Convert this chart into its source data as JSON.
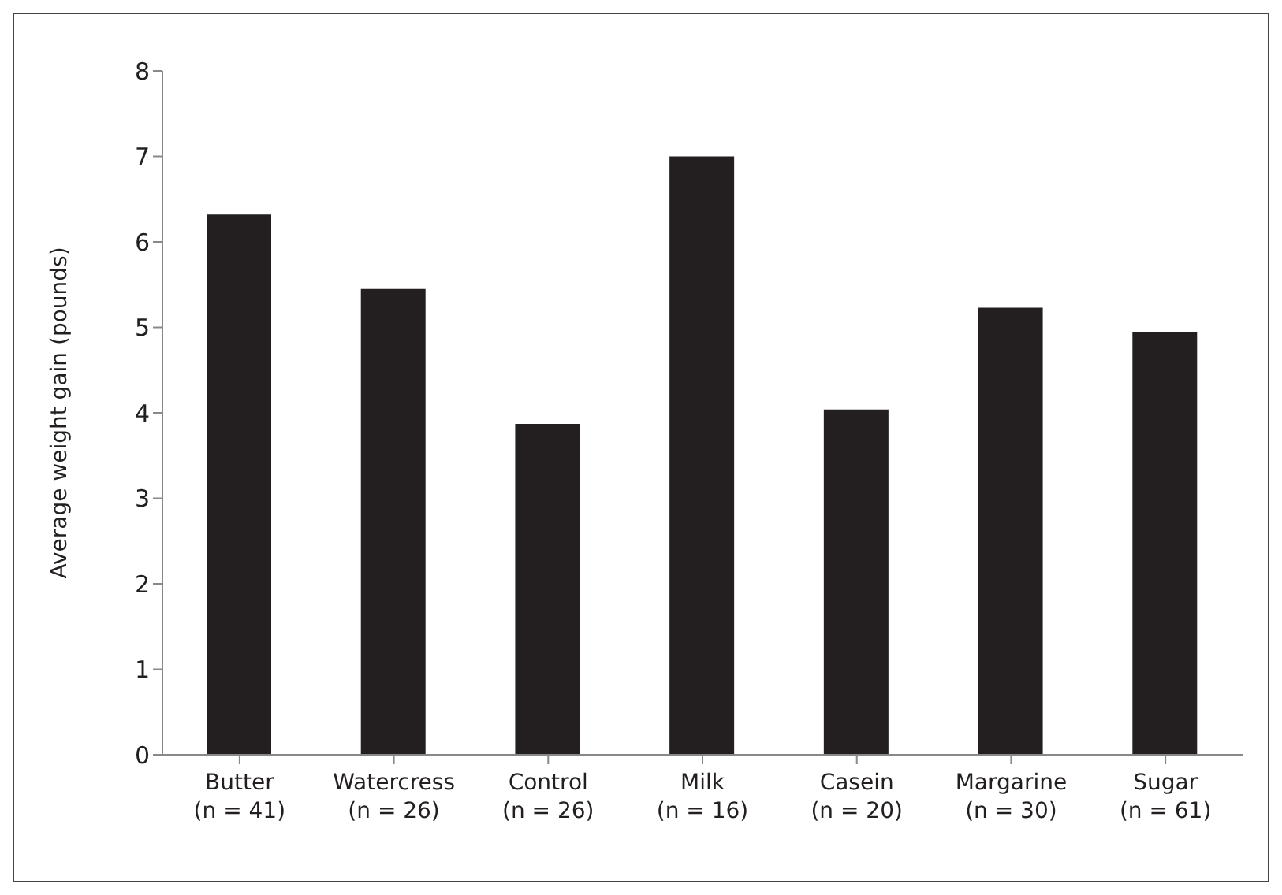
{
  "chart_data": {
    "type": "bar",
    "ylabel": "Average weight gain (pounds)",
    "categories": [
      "Butter\n(n = 41)",
      "Watercress\n(n = 26)",
      "Control\n(n = 26)",
      "Milk\n(n = 16)",
      "Casein\n(n = 20)",
      "Margarine\n(n = 30)",
      "Sugar\n(n = 61)"
    ],
    "values": [
      6.32,
      5.45,
      3.87,
      7.0,
      4.04,
      5.23,
      4.95
    ],
    "color": "#231f20",
    "ylim": [
      0,
      8
    ],
    "yticks": [
      0,
      1,
      2,
      3,
      4,
      5,
      6,
      7,
      8
    ],
    "grid": false,
    "legend": false
  }
}
